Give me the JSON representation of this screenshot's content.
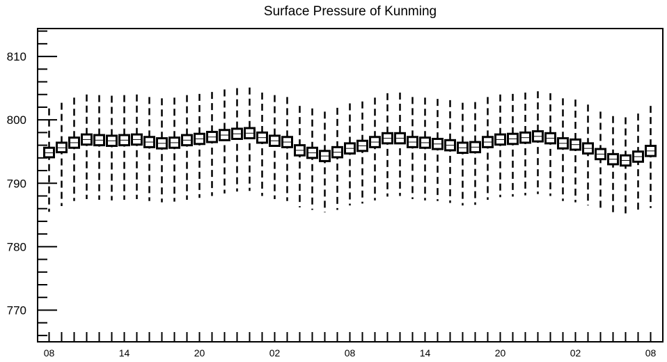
{
  "chart_data": {
    "type": "boxplot",
    "title": "Surface Pressure of Kunming",
    "xlabel": "",
    "ylabel": "",
    "ylim": [
      765,
      814.4
    ],
    "yticks_major": [
      770,
      780,
      790,
      800,
      810
    ],
    "x_tick_labels": [
      "08",
      "14",
      "20",
      "02",
      "08",
      "14",
      "20",
      "02",
      "08"
    ],
    "grid": false,
    "legend": "none",
    "colors": {
      "box_fill": "#ffffff",
      "stroke": "#000000",
      "background": "#ffffff"
    },
    "series": [
      {
        "medians": [
          794.8,
          795.6,
          796.4,
          796.9,
          796.8,
          796.7,
          796.8,
          796.9,
          796.5,
          796.3,
          796.4,
          796.8,
          797.0,
          797.3,
          797.6,
          797.8,
          797.9,
          797.2,
          796.7,
          796.5,
          795.2,
          794.8,
          794.3,
          794.9,
          795.5,
          795.9,
          796.5,
          797.1,
          797.1,
          796.5,
          796.4,
          796.2,
          796.0,
          795.6,
          795.7,
          796.5,
          796.9,
          797.0,
          797.2,
          797.4,
          797.1,
          796.3,
          796.1,
          795.5,
          794.6,
          793.8,
          793.6,
          794.2,
          795.1
        ],
        "box_low": [
          794.1,
          794.9,
          795.6,
          796.1,
          796.0,
          795.9,
          796.0,
          796.1,
          795.7,
          795.5,
          795.6,
          796.0,
          796.2,
          796.5,
          796.8,
          797.0,
          797.1,
          796.4,
          795.9,
          795.7,
          794.4,
          794.0,
          793.5,
          794.1,
          794.7,
          795.1,
          795.7,
          796.3,
          796.3,
          795.7,
          795.6,
          795.4,
          795.2,
          794.8,
          794.9,
          795.7,
          796.1,
          796.2,
          796.4,
          796.6,
          796.3,
          795.5,
          795.3,
          794.7,
          793.8,
          793.0,
          792.8,
          793.4,
          794.3
        ],
        "box_high": [
          795.6,
          796.4,
          797.2,
          797.7,
          797.6,
          797.5,
          797.6,
          797.7,
          797.3,
          797.1,
          797.2,
          797.6,
          797.8,
          798.1,
          798.4,
          798.6,
          798.7,
          798.0,
          797.5,
          797.3,
          796.0,
          795.6,
          795.1,
          795.7,
          796.3,
          796.7,
          797.3,
          797.9,
          797.9,
          797.3,
          797.2,
          797.0,
          796.8,
          796.4,
          796.5,
          797.3,
          797.7,
          797.8,
          798.0,
          798.2,
          797.9,
          797.1,
          796.9,
          796.3,
          795.4,
          794.6,
          794.4,
          795.0,
          795.9
        ],
        "whisker_low": [
          785.5,
          786.4,
          787.2,
          787.5,
          787.4,
          787.3,
          787.4,
          787.5,
          787.2,
          787.0,
          787.1,
          787.4,
          787.7,
          788.0,
          788.4,
          788.7,
          788.8,
          788.0,
          787.5,
          787.2,
          786.2,
          785.8,
          785.4,
          785.8,
          786.5,
          786.8,
          787.3,
          787.9,
          788.0,
          787.5,
          787.3,
          787.2,
          786.9,
          786.5,
          786.6,
          787.4,
          787.8,
          787.9,
          788.1,
          788.3,
          788.0,
          787.2,
          787.0,
          786.5,
          785.6,
          784.8,
          784.6,
          785.2,
          786.1
        ],
        "whisker_high": [
          801.8,
          802.7,
          803.5,
          804.0,
          803.9,
          803.8,
          803.9,
          804.0,
          803.6,
          803.4,
          803.5,
          803.9,
          804.1,
          804.4,
          804.8,
          805.0,
          805.1,
          804.3,
          803.9,
          803.6,
          802.2,
          801.8,
          801.3,
          801.9,
          802.6,
          802.9,
          803.5,
          804.2,
          804.3,
          803.6,
          803.5,
          803.3,
          803.1,
          802.7,
          802.8,
          803.6,
          804.0,
          804.1,
          804.3,
          804.5,
          804.2,
          803.4,
          803.2,
          802.4,
          801.3,
          800.6,
          800.4,
          801.0,
          802.2
        ]
      }
    ]
  }
}
